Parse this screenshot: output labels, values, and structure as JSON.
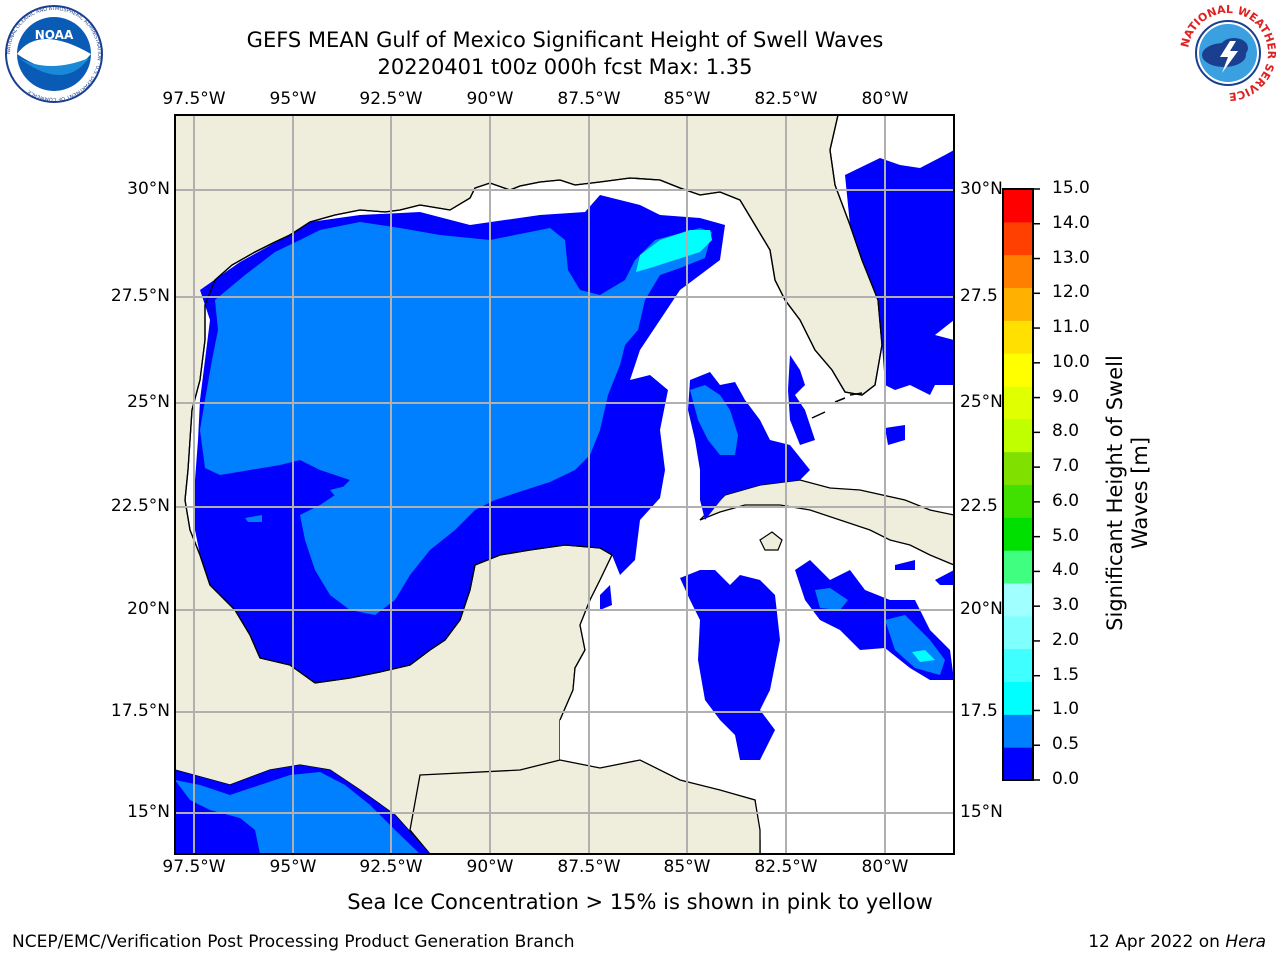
{
  "header": {
    "title_line1": "GEFS MEAN Gulf of Mexico Significant Height of Swell Waves",
    "title_line2": "20220401 t00z 000h fcst   Max: 1.35"
  },
  "logos": {
    "left": {
      "text": "NOAA",
      "ring_text": "NATIONAL OCEANIC AND ATMOSPHERIC ADMINISTRATION · U.S. DEPARTMENT OF COMMERCE"
    },
    "right": {
      "ring_text": "NATIONAL WEATHER SERVICE"
    }
  },
  "map": {
    "lon_labels": [
      "97.5°W",
      "95°W",
      "92.5°W",
      "90°W",
      "87.5°W",
      "85°W",
      "82.5°W",
      "80°W"
    ],
    "lat_labels_left": [
      "30°N",
      "27.5°N",
      "25°N",
      "22.5°N",
      "20°N",
      "17.5°N",
      "15°N"
    ],
    "lat_labels_right": [
      "30°N",
      "27.5",
      "25°N",
      "22.5",
      "20°N",
      "17.5",
      "15°N"
    ],
    "colors": {
      "land": "#efeedc",
      "ocean_none": "#ffffff",
      "grid": "#b0b0b0"
    }
  },
  "colorbar": {
    "label_line1": "Significant Height of Swell",
    "label_line2": "Waves [m]",
    "ticks": [
      "15.0",
      "14.0",
      "13.0",
      "12.0",
      "11.0",
      "10.0",
      "9.0",
      "8.0",
      "7.0",
      "6.0",
      "5.0",
      "4.0",
      "3.0",
      "2.0",
      "1.5",
      "1.0",
      "0.5",
      "0.0"
    ],
    "colors": [
      "#0000ff",
      "#0080ff",
      "#00ffff",
      "#40ffff",
      "#80ffff",
      "#a0ffff",
      "#40ff80",
      "#00e000",
      "#40e000",
      "#80e000",
      "#c0ff00",
      "#e0ff00",
      "#ffff00",
      "#ffe000",
      "#ffb000",
      "#ff8000",
      "#ff4000",
      "#ff0000"
    ]
  },
  "notes": {
    "sea_ice": "Sea Ice Concentration > 15% is shown in pink to yellow"
  },
  "footer": {
    "left": "NCEP/EMC/Verification Post Processing Product Generation Branch",
    "right_prefix": "12 Apr 2022 on ",
    "right_host": "Hera"
  }
}
